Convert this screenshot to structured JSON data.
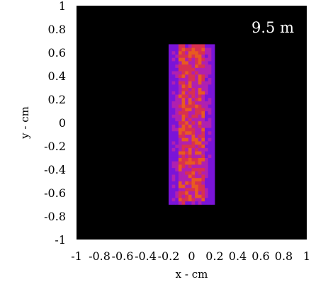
{
  "chart_data": {
    "type": "heatmap",
    "xlabel": "x - cm",
    "ylabel": "y - cm",
    "xlim": [
      -1,
      1
    ],
    "ylim": [
      -1,
      1
    ],
    "annotation": "9.5 m",
    "x_ticks": [
      "-1",
      "-0.8",
      "-0.6",
      "-0.4",
      "-0.2",
      "0",
      "0.2",
      "0.4",
      "0.6",
      "0.8",
      "1"
    ],
    "y_ticks": [
      "1",
      "0.8",
      "0.6",
      "0.4",
      "0.2",
      "0",
      "-0.2",
      "-0.4",
      "-0.6",
      "-0.8",
      "-1"
    ],
    "background_color": "#000000",
    "colormap": [
      "#3a0070",
      "#7a14d8",
      "#b020b0",
      "#d83050",
      "#e85a20"
    ],
    "region": {
      "x_range": [
        -0.2,
        0.2
      ],
      "y_range": [
        -0.7,
        0.67
      ],
      "core_x_range": [
        -0.12,
        0.12
      ],
      "edge_color": "#6e10e0",
      "core_color": "#d83050"
    }
  }
}
